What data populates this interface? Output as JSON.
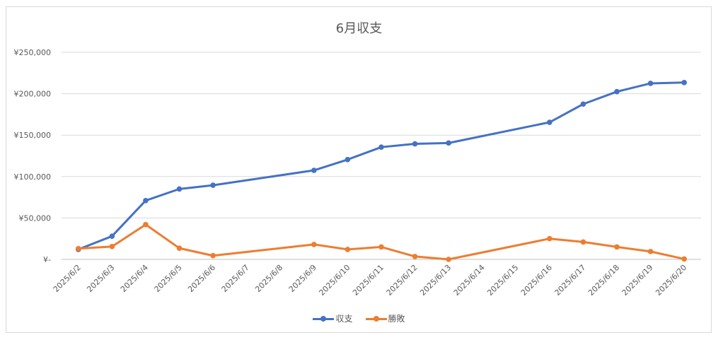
{
  "chart_data": {
    "type": "line",
    "title": "6月収支",
    "xlabel": "",
    "ylabel": "",
    "categories": [
      "2025/6/2",
      "2025/6/3",
      "2025/6/4",
      "2025/6/5",
      "2025/6/6",
      "2025/6/7",
      "2025/6/8",
      "2025/6/9",
      "2025/6/10",
      "2025/6/11",
      "2025/6/12",
      "2025/6/13",
      "2025/6/14",
      "2025/6/15",
      "2025/6/16",
      "2025/6/17",
      "2025/6/18",
      "2025/6/19",
      "2025/6/20"
    ],
    "ylim": [
      0,
      250000
    ],
    "y_ticks": [
      0,
      50000,
      100000,
      150000,
      200000,
      250000
    ],
    "y_tick_labels": [
      "¥-",
      "¥50,000",
      "¥100,000",
      "¥150,000",
      "¥200,000",
      "¥250,000"
    ],
    "grid": true,
    "legend_position": "bottom",
    "series": [
      {
        "name": "収支",
        "color": "#4472c4",
        "values": [
          12000,
          28000,
          71000,
          85000,
          89500,
          null,
          null,
          107500,
          120500,
          135500,
          139500,
          140500,
          null,
          null,
          165500,
          187500,
          202500,
          212500,
          213500
        ]
      },
      {
        "name": "勝敗",
        "color": "#ed7d31",
        "values": [
          13000,
          15500,
          42000,
          13500,
          4500,
          null,
          null,
          18000,
          12000,
          15000,
          3500,
          0,
          null,
          null,
          25000,
          21000,
          15000,
          9500,
          500
        ]
      }
    ]
  }
}
